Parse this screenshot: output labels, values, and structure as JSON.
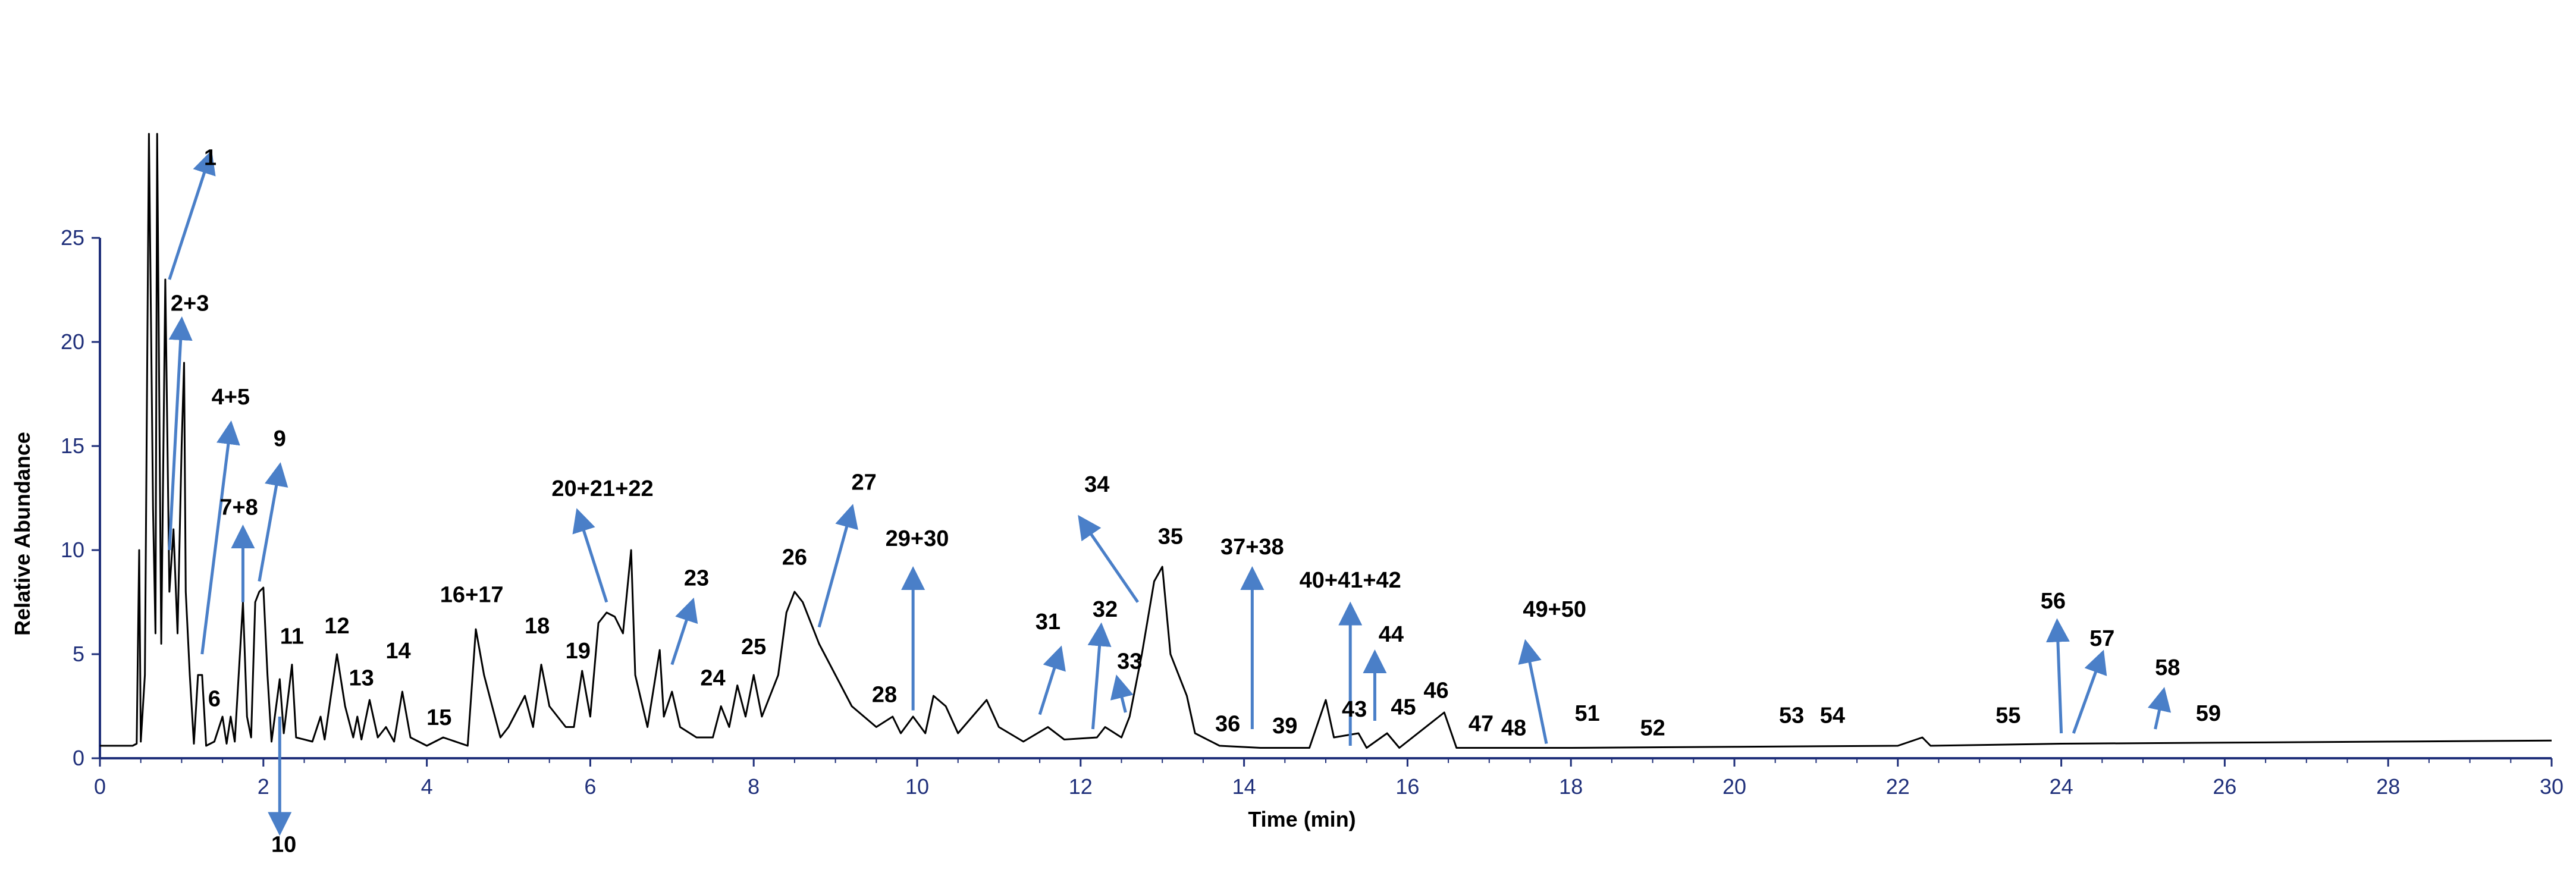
{
  "chart_data": {
    "type": "line",
    "title": "",
    "xlabel": "Time (min)",
    "ylabel": "Relative Abundance",
    "xlim": [
      0,
      30
    ],
    "ylim": [
      0,
      25
    ],
    "x_ticks": [
      0,
      2,
      4,
      6,
      8,
      10,
      12,
      14,
      16,
      18,
      20,
      22,
      24,
      26,
      28,
      30
    ],
    "y_ticks": [
      0,
      5,
      10,
      15,
      20,
      25
    ],
    "grid": false,
    "colors": {
      "trace": "#000000",
      "axis": "#1f2f7a",
      "arrow": "#4a7fc8"
    },
    "series": [
      {
        "values_xy": [
          [
            0,
            0.6
          ],
          [
            0.4,
            0.6
          ],
          [
            0.45,
            0.7
          ],
          [
            0.48,
            10
          ],
          [
            0.5,
            0.8
          ],
          [
            0.55,
            4
          ],
          [
            0.6,
            30
          ],
          [
            0.65,
            12
          ],
          [
            0.68,
            6
          ],
          [
            0.7,
            30
          ],
          [
            0.75,
            5.5
          ],
          [
            0.8,
            23
          ],
          [
            0.85,
            8
          ],
          [
            0.9,
            11
          ],
          [
            0.95,
            6
          ],
          [
            1.0,
            15
          ],
          [
            1.03,
            19
          ],
          [
            1.05,
            8
          ],
          [
            1.1,
            4
          ],
          [
            1.15,
            0.7
          ],
          [
            1.2,
            4
          ],
          [
            1.25,
            4
          ],
          [
            1.3,
            0.6
          ],
          [
            1.4,
            0.8
          ],
          [
            1.5,
            2
          ],
          [
            1.55,
            0.7
          ],
          [
            1.6,
            2
          ],
          [
            1.65,
            0.8
          ],
          [
            1.75,
            7.5
          ],
          [
            1.8,
            2
          ],
          [
            1.85,
            1
          ],
          [
            1.9,
            7.5
          ],
          [
            1.95,
            8
          ],
          [
            2.0,
            8.2
          ],
          [
            2.05,
            4
          ],
          [
            2.1,
            0.8
          ],
          [
            2.2,
            3.8
          ],
          [
            2.25,
            1.2
          ],
          [
            2.35,
            4.5
          ],
          [
            2.4,
            1
          ],
          [
            2.6,
            0.8
          ],
          [
            2.7,
            2
          ],
          [
            2.75,
            0.9
          ],
          [
            2.9,
            5
          ],
          [
            3.0,
            2.5
          ],
          [
            3.1,
            1
          ],
          [
            3.15,
            2
          ],
          [
            3.2,
            0.9
          ],
          [
            3.3,
            2.8
          ],
          [
            3.4,
            1
          ],
          [
            3.5,
            1.5
          ],
          [
            3.6,
            0.8
          ],
          [
            3.7,
            3.2
          ],
          [
            3.8,
            1
          ],
          [
            4.0,
            0.6
          ],
          [
            4.2,
            1
          ],
          [
            4.5,
            0.6
          ],
          [
            4.6,
            6.2
          ],
          [
            4.7,
            4
          ],
          [
            4.8,
            2.5
          ],
          [
            4.9,
            1
          ],
          [
            5.0,
            1.5
          ],
          [
            5.2,
            3
          ],
          [
            5.3,
            1.5
          ],
          [
            5.4,
            4.5
          ],
          [
            5.5,
            2.5
          ],
          [
            5.7,
            1.5
          ],
          [
            5.8,
            1.5
          ],
          [
            5.9,
            4.2
          ],
          [
            6.0,
            2
          ],
          [
            6.1,
            6.5
          ],
          [
            6.2,
            7
          ],
          [
            6.3,
            6.8
          ],
          [
            6.4,
            6
          ],
          [
            6.5,
            10
          ],
          [
            6.55,
            4
          ],
          [
            6.7,
            1.5
          ],
          [
            6.85,
            5.2
          ],
          [
            6.9,
            2
          ],
          [
            7.0,
            3.2
          ],
          [
            7.1,
            1.5
          ],
          [
            7.3,
            1
          ],
          [
            7.5,
            1
          ],
          [
            7.6,
            2.5
          ],
          [
            7.7,
            1.5
          ],
          [
            7.8,
            3.5
          ],
          [
            7.9,
            2
          ],
          [
            8.0,
            4
          ],
          [
            8.1,
            2
          ],
          [
            8.3,
            4
          ],
          [
            8.4,
            7
          ],
          [
            8.5,
            8
          ],
          [
            8.6,
            7.5
          ],
          [
            8.8,
            5.5
          ],
          [
            9.0,
            4
          ],
          [
            9.2,
            2.5
          ],
          [
            9.5,
            1.5
          ],
          [
            9.7,
            2
          ],
          [
            9.8,
            1.2
          ],
          [
            9.95,
            2
          ],
          [
            10.1,
            1.2
          ],
          [
            10.2,
            3
          ],
          [
            10.35,
            2.5
          ],
          [
            10.5,
            1.2
          ],
          [
            10.85,
            2.8
          ],
          [
            11.0,
            1.5
          ],
          [
            11.3,
            0.8
          ],
          [
            11.6,
            1.5
          ],
          [
            11.8,
            0.9
          ],
          [
            12.2,
            1
          ],
          [
            12.3,
            1.5
          ],
          [
            12.5,
            1
          ],
          [
            12.6,
            2
          ],
          [
            12.75,
            5
          ],
          [
            12.9,
            8.5
          ],
          [
            13.0,
            9.2
          ],
          [
            13.1,
            5
          ],
          [
            13.3,
            3
          ],
          [
            13.4,
            1.2
          ],
          [
            13.7,
            0.6
          ],
          [
            14.2,
            0.5
          ],
          [
            14.8,
            0.5
          ],
          [
            15.0,
            2.8
          ],
          [
            15.1,
            1
          ],
          [
            15.4,
            1.2
          ],
          [
            15.5,
            0.5
          ],
          [
            15.75,
            1.2
          ],
          [
            15.9,
            0.5
          ],
          [
            16.45,
            2.2
          ],
          [
            16.6,
            0.5
          ],
          [
            18.0,
            0.5
          ],
          [
            20.0,
            0.55
          ],
          [
            22.0,
            0.6
          ],
          [
            22.3,
            1
          ],
          [
            22.4,
            0.6
          ],
          [
            24.0,
            0.7
          ],
          [
            26.0,
            0.75
          ],
          [
            28.0,
            0.8
          ],
          [
            30.0,
            0.85
          ]
        ]
      }
    ],
    "annotations": [
      {
        "label": "1",
        "x": 1.35,
        "y": 28.5
      },
      {
        "label": "2+3",
        "x": 1.1,
        "y": 21.5
      },
      {
        "label": "4+5",
        "x": 1.6,
        "y": 17
      },
      {
        "label": "6",
        "x": 1.4,
        "y": 2.5
      },
      {
        "label": "7+8",
        "x": 1.7,
        "y": 11.7
      },
      {
        "label": "9",
        "x": 2.2,
        "y": 15
      },
      {
        "label": "10",
        "x": 2.25,
        "y": -4.5
      },
      {
        "label": "11",
        "x": 2.35,
        "y": 5.5
      },
      {
        "label": "12",
        "x": 2.9,
        "y": 6
      },
      {
        "label": "13",
        "x": 3.2,
        "y": 3.5
      },
      {
        "label": "14",
        "x": 3.65,
        "y": 4.8
      },
      {
        "label": "15",
        "x": 4.15,
        "y": 1.6
      },
      {
        "label": "16+17",
        "x": 4.55,
        "y": 7.5
      },
      {
        "label": "18",
        "x": 5.35,
        "y": 6
      },
      {
        "label": "19",
        "x": 5.85,
        "y": 4.8
      },
      {
        "label": "20+21+22",
        "x": 6.15,
        "y": 12.6
      },
      {
        "label": "23",
        "x": 7.3,
        "y": 8.3
      },
      {
        "label": "24",
        "x": 7.5,
        "y": 3.5
      },
      {
        "label": "25",
        "x": 8.0,
        "y": 5
      },
      {
        "label": "26",
        "x": 8.5,
        "y": 9.3
      },
      {
        "label": "27",
        "x": 9.35,
        "y": 12.9
      },
      {
        "label": "28",
        "x": 9.6,
        "y": 2.7
      },
      {
        "label": "29+30",
        "x": 10.0,
        "y": 10.2
      },
      {
        "label": "31",
        "x": 11.6,
        "y": 6.2
      },
      {
        "label": "32",
        "x": 12.3,
        "y": 6.8
      },
      {
        "label": "33",
        "x": 12.6,
        "y": 4.3
      },
      {
        "label": "34",
        "x": 12.2,
        "y": 12.8
      },
      {
        "label": "35",
        "x": 13.1,
        "y": 10.3
      },
      {
        "label": "36",
        "x": 13.8,
        "y": 1.3
      },
      {
        "label": "37+38",
        "x": 14.1,
        "y": 9.8
      },
      {
        "label": "39",
        "x": 14.5,
        "y": 1.2
      },
      {
        "label": "40+41+42",
        "x": 15.3,
        "y": 8.2
      },
      {
        "label": "43",
        "x": 15.35,
        "y": 2
      },
      {
        "label": "44",
        "x": 15.8,
        "y": 5.6
      },
      {
        "label": "45",
        "x": 15.95,
        "y": 2.1
      },
      {
        "label": "46",
        "x": 16.35,
        "y": 2.9
      },
      {
        "label": "47",
        "x": 16.9,
        "y": 1.3
      },
      {
        "label": "48",
        "x": 17.3,
        "y": 1.1
      },
      {
        "label": "49+50",
        "x": 17.8,
        "y": 6.8
      },
      {
        "label": "51",
        "x": 18.2,
        "y": 1.8
      },
      {
        "label": "52",
        "x": 19.0,
        "y": 1.1
      },
      {
        "label": "53",
        "x": 20.7,
        "y": 1.7
      },
      {
        "label": "54",
        "x": 21.2,
        "y": 1.7
      },
      {
        "label": "55",
        "x": 23.35,
        "y": 1.7
      },
      {
        "label": "56",
        "x": 23.9,
        "y": 7.2
      },
      {
        "label": "57",
        "x": 24.5,
        "y": 5.4
      },
      {
        "label": "58",
        "x": 25.3,
        "y": 4
      },
      {
        "label": "59",
        "x": 25.8,
        "y": 1.8
      }
    ],
    "arrows": [
      {
        "label": "1",
        "from": [
          0.85,
          23
        ],
        "to": [
          1.35,
          29
        ]
      },
      {
        "label": "2+3",
        "from": [
          0.85,
          10
        ],
        "to": [
          1.0,
          21
        ]
      },
      {
        "label": "4+5",
        "from": [
          1.25,
          5
        ],
        "to": [
          1.6,
          16
        ]
      },
      {
        "label": "7+8",
        "from": [
          1.75,
          7.5
        ],
        "to": [
          1.75,
          11
        ]
      },
      {
        "label": "9",
        "from": [
          1.95,
          8.5
        ],
        "to": [
          2.2,
          14
        ]
      },
      {
        "label": "10",
        "from": [
          2.2,
          2
        ],
        "to": [
          2.2,
          -3.5
        ]
      },
      {
        "label": "20+21+22",
        "from": [
          6.2,
          7.5
        ],
        "to": [
          5.85,
          11.8
        ]
      },
      {
        "label": "23",
        "from": [
          7.0,
          4.5
        ],
        "to": [
          7.25,
          7.5
        ]
      },
      {
        "label": "27",
        "from": [
          8.8,
          6.3
        ],
        "to": [
          9.2,
          12
        ]
      },
      {
        "label": "29+30",
        "from": [
          9.95,
          2.3
        ],
        "to": [
          9.95,
          9
        ]
      },
      {
        "label": "31",
        "from": [
          11.5,
          2.1
        ],
        "to": [
          11.75,
          5.2
        ]
      },
      {
        "label": "32",
        "from": [
          12.15,
          1.4
        ],
        "to": [
          12.25,
          6.3
        ]
      },
      {
        "label": "33",
        "from": [
          12.55,
          2.2
        ],
        "to": [
          12.45,
          3.8
        ]
      },
      {
        "label": "34",
        "from": [
          12.7,
          7.5
        ],
        "to": [
          12.0,
          11.5
        ]
      },
      {
        "label": "37+38",
        "from": [
          14.1,
          1.4
        ],
        "to": [
          14.1,
          9
        ]
      },
      {
        "label": "40+41+42",
        "from": [
          15.3,
          0.6
        ],
        "to": [
          15.3,
          7.3
        ]
      },
      {
        "label": "44",
        "from": [
          15.6,
          1.8
        ],
        "to": [
          15.6,
          5
        ]
      },
      {
        "label": "49+50",
        "from": [
          17.7,
          0.7
        ],
        "to": [
          17.45,
          5.5
        ]
      },
      {
        "label": "56",
        "from": [
          24.0,
          1.2
        ],
        "to": [
          23.95,
          6.5
        ]
      },
      {
        "label": "57",
        "from": [
          24.15,
          1.2
        ],
        "to": [
          24.5,
          5
        ]
      },
      {
        "label": "58",
        "from": [
          25.15,
          1.4
        ],
        "to": [
          25.25,
          3.2
        ]
      }
    ]
  }
}
